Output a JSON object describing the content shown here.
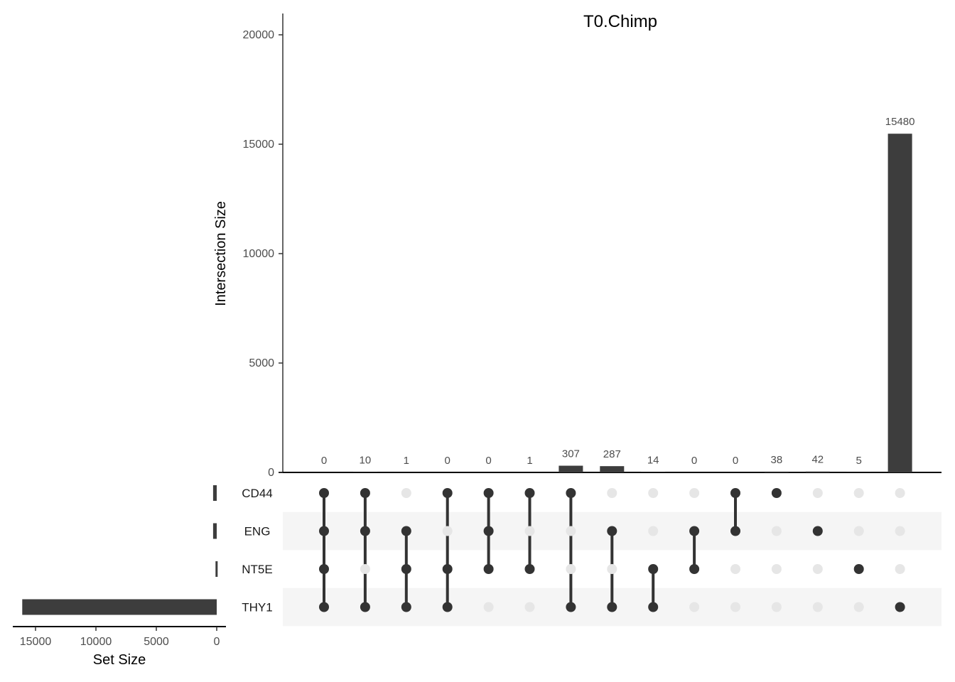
{
  "chart_data": {
    "type": "upset",
    "title": "T0.Chimp",
    "ylabel": "Intersection Size",
    "xlabel_sets": "Set Size",
    "ylim": [
      0,
      21000
    ],
    "yticks": [
      0,
      5000,
      10000,
      15000,
      20000
    ],
    "sets": [
      "CD44",
      "ENG",
      "NT5E",
      "THY1"
    ],
    "set_sizes": [
      300,
      300,
      100,
      16100
    ],
    "set_size_ticks": [
      15000,
      10000,
      5000,
      0
    ],
    "set_size_max": 17000,
    "intersections": [
      {
        "members": [
          "CD44",
          "ENG",
          "NT5E",
          "THY1"
        ],
        "size": 0
      },
      {
        "members": [
          "CD44",
          "ENG",
          "THY1"
        ],
        "size": 10
      },
      {
        "members": [
          "ENG",
          "NT5E",
          "THY1"
        ],
        "size": 1
      },
      {
        "members": [
          "CD44",
          "NT5E",
          "THY1"
        ],
        "size": 0
      },
      {
        "members": [
          "CD44",
          "ENG",
          "NT5E"
        ],
        "size": 0
      },
      {
        "members": [
          "CD44",
          "NT5E"
        ],
        "size": 1
      },
      {
        "members": [
          "CD44",
          "THY1"
        ],
        "size": 307
      },
      {
        "members": [
          "ENG",
          "THY1"
        ],
        "size": 287
      },
      {
        "members": [
          "NT5E",
          "THY1"
        ],
        "size": 14
      },
      {
        "members": [
          "ENG",
          "NT5E"
        ],
        "size": 0
      },
      {
        "members": [
          "CD44",
          "ENG"
        ],
        "size": 0
      },
      {
        "members": [
          "CD44"
        ],
        "size": 38
      },
      {
        "members": [
          "ENG"
        ],
        "size": 42
      },
      {
        "members": [
          "NT5E"
        ],
        "size": 5
      },
      {
        "members": [
          "THY1"
        ],
        "size": 15480
      }
    ],
    "colors": {
      "bar": "#3d3d3d",
      "dot_active": "#333333",
      "dot_inactive": "#e6e6e6",
      "stripe": "#f5f5f5"
    }
  }
}
